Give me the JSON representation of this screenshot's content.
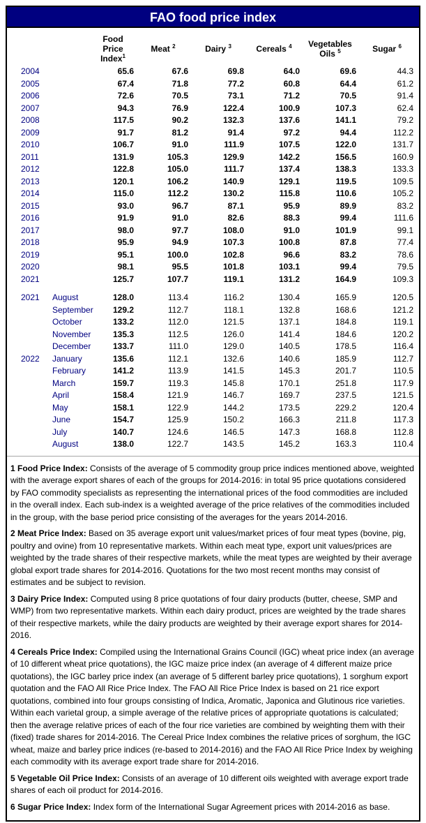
{
  "title": "FAO food price index",
  "table": {
    "headers": [
      {
        "top": "Food Price",
        "label": "Index",
        "sup": "1"
      },
      {
        "top": "",
        "label": "Meat",
        "sup": "2"
      },
      {
        "top": "",
        "label": "Dairy",
        "sup": "3"
      },
      {
        "top": "",
        "label": "Cereals",
        "sup": "4"
      },
      {
        "top": "Vegetables",
        "label": "Oils",
        "sup": "5"
      },
      {
        "top": "",
        "label": "Sugar",
        "sup": "6"
      }
    ],
    "yearly_rows": [
      {
        "year": "2004",
        "values": [
          "65.6",
          "67.6",
          "69.8",
          "64.0",
          "69.6",
          "44.3"
        ]
      },
      {
        "year": "2005",
        "values": [
          "67.4",
          "71.8",
          "77.2",
          "60.8",
          "64.4",
          "61.2"
        ]
      },
      {
        "year": "2006",
        "values": [
          "72.6",
          "70.5",
          "73.1",
          "71.2",
          "70.5",
          "91.4"
        ]
      },
      {
        "year": "2007",
        "values": [
          "94.3",
          "76.9",
          "122.4",
          "100.9",
          "107.3",
          "62.4"
        ]
      },
      {
        "year": "2008",
        "values": [
          "117.5",
          "90.2",
          "132.3",
          "137.6",
          "141.1",
          "79.2"
        ]
      },
      {
        "year": "2009",
        "values": [
          "91.7",
          "81.2",
          "91.4",
          "97.2",
          "94.4",
          "112.2"
        ]
      },
      {
        "year": "2010",
        "values": [
          "106.7",
          "91.0",
          "111.9",
          "107.5",
          "122.0",
          "131.7"
        ]
      },
      {
        "year": "2011",
        "values": [
          "131.9",
          "105.3",
          "129.9",
          "142.2",
          "156.5",
          "160.9"
        ]
      },
      {
        "year": "2012",
        "values": [
          "122.8",
          "105.0",
          "111.7",
          "137.4",
          "138.3",
          "133.3"
        ]
      },
      {
        "year": "2013",
        "values": [
          "120.1",
          "106.2",
          "140.9",
          "129.1",
          "119.5",
          "109.5"
        ]
      },
      {
        "year": "2014",
        "values": [
          "115.0",
          "112.2",
          "130.2",
          "115.8",
          "110.6",
          "105.2"
        ]
      },
      {
        "year": "2015",
        "values": [
          "93.0",
          "96.7",
          "87.1",
          "95.9",
          "89.9",
          "83.2"
        ]
      },
      {
        "year": "2016",
        "values": [
          "91.9",
          "91.0",
          "82.6",
          "88.3",
          "99.4",
          "111.6"
        ]
      },
      {
        "year": "2017",
        "values": [
          "98.0",
          "97.7",
          "108.0",
          "91.0",
          "101.9",
          "99.1"
        ]
      },
      {
        "year": "2018",
        "values": [
          "95.9",
          "94.9",
          "107.3",
          "100.8",
          "87.8",
          "77.4"
        ]
      },
      {
        "year": "2019",
        "values": [
          "95.1",
          "100.0",
          "102.8",
          "96.6",
          "83.2",
          "78.6"
        ]
      },
      {
        "year": "2020",
        "values": [
          "98.1",
          "95.5",
          "101.8",
          "103.1",
          "99.4",
          "79.5"
        ]
      },
      {
        "year": "2021",
        "values": [
          "125.7",
          "107.7",
          "119.1",
          "131.2",
          "164.9",
          "109.3"
        ]
      }
    ],
    "monthly_rows": [
      {
        "year": "2021",
        "month": "August",
        "values": [
          "128.0",
          "113.4",
          "116.2",
          "130.4",
          "165.9",
          "120.5"
        ]
      },
      {
        "year": "",
        "month": "September",
        "values": [
          "129.2",
          "112.7",
          "118.1",
          "132.8",
          "168.6",
          "121.2"
        ]
      },
      {
        "year": "",
        "month": "October",
        "values": [
          "133.2",
          "112.0",
          "121.5",
          "137.1",
          "184.8",
          "119.1"
        ]
      },
      {
        "year": "",
        "month": "November",
        "values": [
          "135.3",
          "112.5",
          "126.0",
          "141.4",
          "184.6",
          "120.2"
        ]
      },
      {
        "year": "",
        "month": "December",
        "values": [
          "133.7",
          "111.0",
          "129.0",
          "140.5",
          "178.5",
          "116.4"
        ]
      },
      {
        "year": "2022",
        "month": "January",
        "values": [
          "135.6",
          "112.1",
          "132.6",
          "140.6",
          "185.9",
          "112.7"
        ]
      },
      {
        "year": "",
        "month": "February",
        "values": [
          "141.2",
          "113.9",
          "141.5",
          "145.3",
          "201.7",
          "110.5"
        ]
      },
      {
        "year": "",
        "month": "March",
        "values": [
          "159.7",
          "119.3",
          "145.8",
          "170.1",
          "251.8",
          "117.9"
        ]
      },
      {
        "year": "",
        "month": "April",
        "values": [
          "158.4",
          "121.9",
          "146.7",
          "169.7",
          "237.5",
          "121.5"
        ]
      },
      {
        "year": "",
        "month": "May",
        "values": [
          "158.1",
          "122.9",
          "144.2",
          "173.5",
          "229.2",
          "120.4"
        ]
      },
      {
        "year": "",
        "month": "June",
        "values": [
          "154.7",
          "125.9",
          "150.2",
          "166.3",
          "211.8",
          "117.3"
        ]
      },
      {
        "year": "",
        "month": "July",
        "values": [
          "140.7",
          "124.6",
          "146.5",
          "147.3",
          "168.8",
          "112.8"
        ]
      },
      {
        "year": "",
        "month": "August",
        "values": [
          "138.0",
          "122.7",
          "143.5",
          "145.2",
          "163.3",
          "110.4"
        ]
      }
    ]
  },
  "footnotes": [
    {
      "lead": "1 Food Price Index:",
      "text": " Consists of the average of 5 commodity group price indices mentioned above, weighted with the average export shares of each of the groups for 2014-2016: in total 95 price quotations considered by FAO commodity specialists as representing the international prices of the food commodities are included in the overall index. Each sub-index is a weighted average of the price relatives of the commodities included in the group, with the base period price consisting of the averages for the years 2014-2016."
    },
    {
      "lead": "2 Meat Price Index:",
      "text": " Based on 35 average export unit values/market prices of four meat types (bovine, pig, poultry and ovine) from 10 representative markets. Within each meat type, export unit values/prices are weighted by the trade shares of their respective markets, while the meat types are weighted by their average global export trade shares for 2014-2016. Quotations for the two most recent months may consist of estimates and be subject to revision."
    },
    {
      "lead": "3 Dairy Price Index:",
      "text": " Computed using 8 price quotations of four dairy products (butter, cheese, SMP and WMP) from two representative markets. Within each dairy product, prices are weighted by the trade shares of their respective markets, while the dairy products are weighted by their average export shares for 2014-2016."
    },
    {
      "lead": "4 Cereals Price Index:",
      "text": " Compiled using the International Grains Council (IGC) wheat price index (an average of 10 different wheat price quotations), the IGC maize price index (an average of 4 different maize price quotations), the IGC barley price index (an average of 5 different barley price quotations), 1 sorghum export quotation and the FAO All Rice Price Index. The FAO All Rice Price Index is based on 21 rice export quotations, combined into four groups consisting of Indica, Aromatic, Japonica and Glutinous rice varieties. Within each varietal group, a simple average of the relative prices of appropriate quotations is calculated; then the average relative prices of each of the four rice varieties are combined by weighting them with their (fixed) trade shares for 2014-2016. The Cereal Price Index combines the relative prices of sorghum, the IGC wheat, maize and barley price indices (re-based to 2014-2016) and the FAO All Rice Price Index by weighing each commodity with its average export trade share for 2014-2016."
    },
    {
      "lead": "5 Vegetable Oil Price Index:",
      "text": " Consists of an average of 10 different oils weighted with average export trade shares of each oil product for 2014-2016."
    },
    {
      "lead": "6 Sugar Price Index:",
      "text": " Index form of the International Sugar Agreement prices with 2014-2016 as base."
    }
  ],
  "colors": {
    "title_bar_bg": "#000080",
    "title_text": "#ffffff",
    "year_month_text": "#000080",
    "value_text": "#000000",
    "border": "#000000"
  }
}
